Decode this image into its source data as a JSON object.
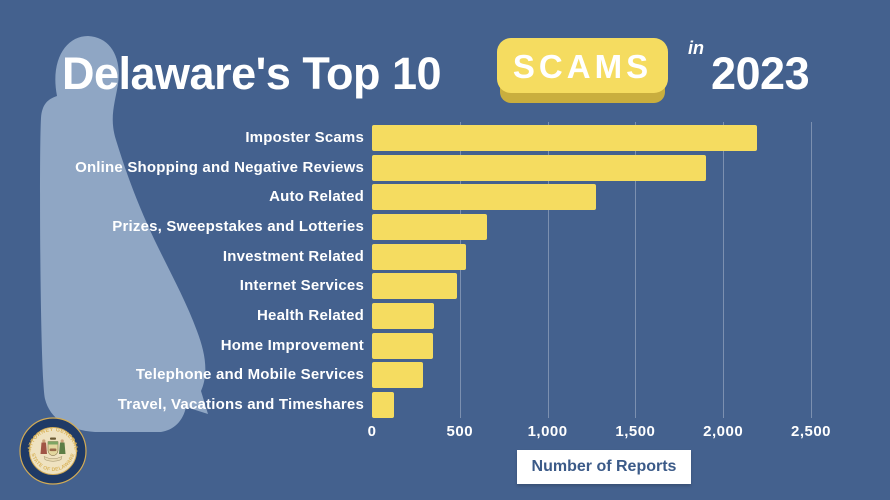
{
  "header": {
    "title_prefix": "Delaware's Top 10",
    "badge_label": "SCAMS",
    "connector": "in",
    "year": "2023"
  },
  "chart_data": {
    "type": "bar",
    "orientation": "horizontal",
    "title": "Delaware's Top 10 SCAMS in 2023",
    "categories": [
      "Imposter Scams",
      "Online Shopping and Negative Reviews",
      "Auto Related",
      "Prizes, Sweepstakes and Lotteries",
      "Investment Related",
      "Internet Services",
      "Health Related",
      "Home Improvement",
      "Telephone and Mobile Services",
      "Travel, Vacations and Timeshares"
    ],
    "values": [
      2190,
      1900,
      1275,
      655,
      535,
      485,
      355,
      345,
      290,
      125
    ],
    "xlabel": "Number of Reports",
    "ylabel": "",
    "x_tick_values": [
      0,
      500,
      1000,
      1500,
      2000,
      2500
    ],
    "x_tick_labels": [
      "0",
      "500",
      "1,000",
      "1,500",
      "2,000",
      "2,500"
    ],
    "xlim": [
      0,
      2950
    ],
    "grid": true,
    "legend": false,
    "bar_color": "#f5dc60"
  },
  "seal": {
    "top_text": "ATTORNEY GENERAL",
    "bottom_text": "STATE OF DELAWARE"
  },
  "colors": {
    "background": "#44618e",
    "silhouette": "#8fa6c4",
    "bar": "#f5dc60",
    "badge": "#f5dc60",
    "badge_shadow": "#c9ae3e",
    "gridline": "rgba(255,255,255,0.30)",
    "text": "#ffffff",
    "xlabel_text": "#3b5a88",
    "xlabel_bg": "#ffffff",
    "seal_ring": "#1f3a66",
    "seal_gold": "#d9b45c",
    "seal_inner": "#efe2c0"
  }
}
